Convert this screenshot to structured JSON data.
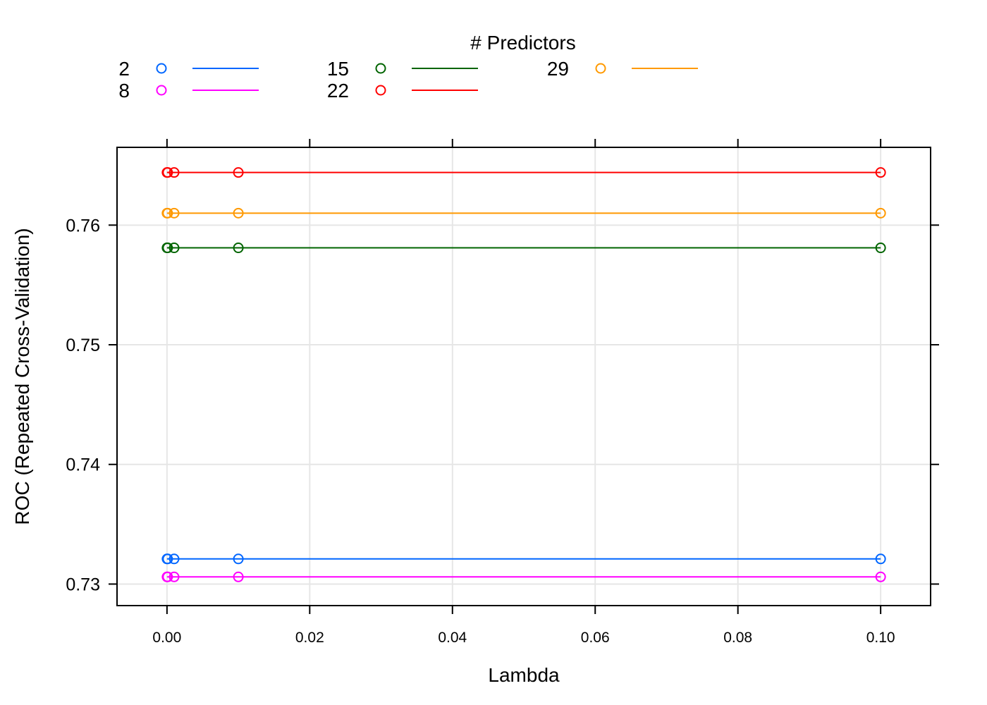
{
  "chart_data": {
    "type": "line",
    "title": "",
    "xlabel": "Lambda",
    "ylabel": "ROC (Repeated Cross-Validation)",
    "xlim": [
      -0.007,
      0.107
    ],
    "ylim": [
      0.7282,
      0.7665
    ],
    "xticks": [
      0.0,
      0.02,
      0.04,
      0.06,
      0.08,
      0.1
    ],
    "xtick_labels": [
      "0.00",
      "0.02",
      "0.04",
      "0.06",
      "0.08",
      "0.10"
    ],
    "yticks": [
      0.73,
      0.74,
      0.75,
      0.76
    ],
    "ytick_labels": [
      "0.73",
      "0.74",
      "0.75",
      "0.76"
    ],
    "grid": true,
    "legend": {
      "title": "# Predictors",
      "position": "top",
      "columns": 3
    },
    "x": [
      0.0,
      0.0001,
      0.001,
      0.01,
      0.1
    ],
    "series": [
      {
        "name": "2",
        "color": "#0066ff",
        "values": [
          0.7321,
          0.7321,
          0.7321,
          0.7321,
          0.7321
        ]
      },
      {
        "name": "8",
        "color": "#ff00ff",
        "values": [
          0.7306,
          0.7306,
          0.7306,
          0.7306,
          0.7306
        ]
      },
      {
        "name": "15",
        "color": "#006400",
        "values": [
          0.7581,
          0.7581,
          0.7581,
          0.7581,
          0.7581
        ]
      },
      {
        "name": "22",
        "color": "#ff0000",
        "values": [
          0.7644,
          0.7644,
          0.7644,
          0.7644,
          0.7644
        ]
      },
      {
        "name": "29",
        "color": "#ff9900",
        "values": [
          0.761,
          0.761,
          0.761,
          0.761,
          0.761
        ]
      }
    ]
  }
}
